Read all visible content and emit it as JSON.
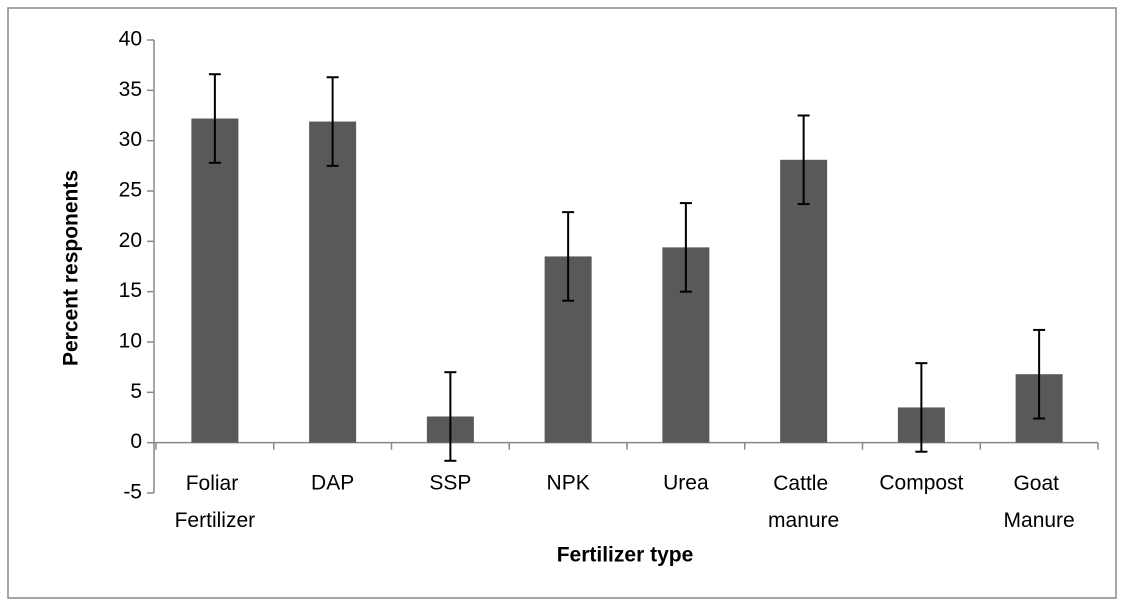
{
  "chart_data": {
    "type": "bar",
    "x_label": "Fertilizer type",
    "y_label": "Percent responents",
    "categories": [
      "Foliar Fertilizer",
      "DAP",
      "SSP",
      "NPK",
      "Urea",
      "Cattle manure",
      "Compost",
      "Goat Manure"
    ],
    "values": [
      32.2,
      31.9,
      2.6,
      18.5,
      19.4,
      28.1,
      3.5,
      6.8
    ],
    "errors": [
      4.4,
      4.4,
      4.4,
      4.4,
      4.4,
      4.4,
      4.4,
      4.4
    ],
    "color": "#595959",
    "ylim": [
      -5,
      40
    ],
    "yticks": [
      -5,
      0,
      5,
      10,
      15,
      20,
      25,
      30,
      35,
      40
    ]
  }
}
